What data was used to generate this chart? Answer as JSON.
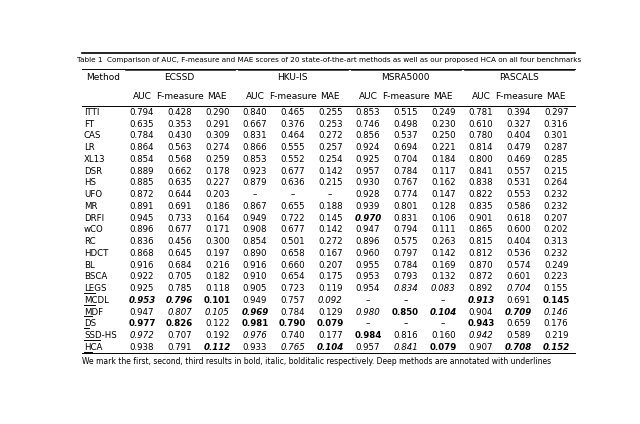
{
  "title": "Table 1  Comparison of AUC, F-measure and MAE scores of 20 state-of-the-art methods as well as our proposed HCA on all four benchmarks",
  "caption": "We mark the first, second, third results in bold, italic, bolditalic respectively. Deep methods are annotated with underlines",
  "datasets": [
    "ECSSD",
    "HKU-IS",
    "MSRA5000",
    "PASCALS"
  ],
  "sub_cols": [
    "AUC",
    "F-measure",
    "MAE"
  ],
  "methods": [
    "ITTI",
    "FT",
    "CAS",
    "LR",
    "XL13",
    "DSR",
    "HS",
    "UFO",
    "MR",
    "DRFI",
    "wCO",
    "RC",
    "HDCT",
    "BL",
    "BSCA",
    "LEGS",
    "MCDL",
    "MDF",
    "DS",
    "SSD-HS",
    "HCA"
  ],
  "deep_methods": [
    "LEGS",
    "MCDL",
    "MDF",
    "DS",
    "SSD-HS",
    "HCA"
  ],
  "data": {
    "ITTI": {
      "ECSSD": [
        0.794,
        0.428,
        0.29
      ],
      "HKU-IS": [
        0.84,
        0.465,
        0.255
      ],
      "MSRA5000": [
        0.853,
        0.515,
        0.249
      ],
      "PASCALS": [
        0.781,
        0.394,
        0.297
      ]
    },
    "FT": {
      "ECSSD": [
        0.635,
        0.353,
        0.291
      ],
      "HKU-IS": [
        0.667,
        0.376,
        0.253
      ],
      "MSRA5000": [
        0.746,
        0.498,
        0.23
      ],
      "PASCALS": [
        0.61,
        0.327,
        0.316
      ]
    },
    "CAS": {
      "ECSSD": [
        0.784,
        0.43,
        0.309
      ],
      "HKU-IS": [
        0.831,
        0.464,
        0.272
      ],
      "MSRA5000": [
        0.856,
        0.537,
        0.25
      ],
      "PASCALS": [
        0.78,
        0.404,
        0.301
      ]
    },
    "LR": {
      "ECSSD": [
        0.864,
        0.563,
        0.274
      ],
      "HKU-IS": [
        0.866,
        0.555,
        0.257
      ],
      "MSRA5000": [
        0.924,
        0.694,
        0.221
      ],
      "PASCALS": [
        0.814,
        0.479,
        0.287
      ]
    },
    "XL13": {
      "ECSSD": [
        0.854,
        0.568,
        0.259
      ],
      "HKU-IS": [
        0.853,
        0.552,
        0.254
      ],
      "MSRA5000": [
        0.925,
        0.704,
        0.184
      ],
      "PASCALS": [
        0.8,
        0.469,
        0.285
      ]
    },
    "DSR": {
      "ECSSD": [
        0.889,
        0.662,
        0.178
      ],
      "HKU-IS": [
        0.923,
        0.677,
        0.142
      ],
      "MSRA5000": [
        0.957,
        0.784,
        0.117
      ],
      "PASCALS": [
        0.841,
        0.557,
        0.215
      ]
    },
    "HS": {
      "ECSSD": [
        0.885,
        0.635,
        0.227
      ],
      "HKU-IS": [
        0.879,
        0.636,
        0.215
      ],
      "MSRA5000": [
        0.93,
        0.767,
        0.162
      ],
      "PASCALS": [
        0.838,
        0.531,
        0.264
      ]
    },
    "UFO": {
      "ECSSD": [
        0.872,
        0.644,
        0.203
      ],
      "HKU-IS": [
        null,
        null,
        null
      ],
      "MSRA5000": [
        0.928,
        0.774,
        0.147
      ],
      "PASCALS": [
        0.822,
        0.553,
        0.232
      ]
    },
    "MR": {
      "ECSSD": [
        0.891,
        0.691,
        0.186
      ],
      "HKU-IS": [
        0.867,
        0.655,
        0.188
      ],
      "MSRA5000": [
        0.939,
        0.801,
        0.128
      ],
      "PASCALS": [
        0.835,
        0.586,
        0.232
      ]
    },
    "DRFI": {
      "ECSSD": [
        0.945,
        0.733,
        0.164
      ],
      "HKU-IS": [
        0.949,
        0.722,
        0.145
      ],
      "MSRA5000": [
        0.97,
        0.831,
        0.106
      ],
      "PASCALS": [
        0.901,
        0.618,
        0.207
      ]
    },
    "wCO": {
      "ECSSD": [
        0.896,
        0.677,
        0.171
      ],
      "HKU-IS": [
        0.908,
        0.677,
        0.142
      ],
      "MSRA5000": [
        0.947,
        0.794,
        0.111
      ],
      "PASCALS": [
        0.865,
        0.6,
        0.202
      ]
    },
    "RC": {
      "ECSSD": [
        0.836,
        0.456,
        0.3
      ],
      "HKU-IS": [
        0.854,
        0.501,
        0.272
      ],
      "MSRA5000": [
        0.896,
        0.575,
        0.263
      ],
      "PASCALS": [
        0.815,
        0.404,
        0.313
      ]
    },
    "HDCT": {
      "ECSSD": [
        0.868,
        0.645,
        0.197
      ],
      "HKU-IS": [
        0.89,
        0.658,
        0.167
      ],
      "MSRA5000": [
        0.96,
        0.797,
        0.142
      ],
      "PASCALS": [
        0.812,
        0.536,
        0.232
      ]
    },
    "BL": {
      "ECSSD": [
        0.916,
        0.684,
        0.216
      ],
      "HKU-IS": [
        0.916,
        0.66,
        0.207
      ],
      "MSRA5000": [
        0.955,
        0.784,
        0.169
      ],
      "PASCALS": [
        0.87,
        0.574,
        0.249
      ]
    },
    "BSCA": {
      "ECSSD": [
        0.922,
        0.705,
        0.182
      ],
      "HKU-IS": [
        0.91,
        0.654,
        0.175
      ],
      "MSRA5000": [
        0.953,
        0.793,
        0.132
      ],
      "PASCALS": [
        0.872,
        0.601,
        0.223
      ]
    },
    "LEGS": {
      "ECSSD": [
        0.925,
        0.785,
        0.118
      ],
      "HKU-IS": [
        0.905,
        0.723,
        0.119
      ],
      "MSRA5000": [
        0.954,
        0.834,
        0.083
      ],
      "PASCALS": [
        0.892,
        0.704,
        0.155
      ]
    },
    "MCDL": {
      "ECSSD": [
        0.953,
        0.796,
        0.101
      ],
      "HKU-IS": [
        0.949,
        0.757,
        0.092
      ],
      "MSRA5000": [
        null,
        null,
        null
      ],
      "PASCALS": [
        0.913,
        0.691,
        0.145
      ]
    },
    "MDF": {
      "ECSSD": [
        0.947,
        0.807,
        0.105
      ],
      "HKU-IS": [
        0.969,
        0.784,
        0.129
      ],
      "MSRA5000": [
        0.98,
        0.85,
        0.104
      ],
      "PASCALS": [
        0.904,
        0.709,
        0.146
      ]
    },
    "DS": {
      "ECSSD": [
        0.977,
        0.826,
        0.122
      ],
      "HKU-IS": [
        0.981,
        0.79,
        0.079
      ],
      "MSRA5000": [
        null,
        null,
        null
      ],
      "PASCALS": [
        0.943,
        0.659,
        0.176
      ]
    },
    "SSD-HS": {
      "ECSSD": [
        0.972,
        0.707,
        0.192
      ],
      "HKU-IS": [
        0.976,
        0.74,
        0.177
      ],
      "MSRA5000": [
        0.984,
        0.816,
        0.16
      ],
      "PASCALS": [
        0.942,
        0.589,
        0.219
      ]
    },
    "HCA": {
      "ECSSD": [
        0.938,
        0.791,
        0.112
      ],
      "HKU-IS": [
        0.933,
        0.765,
        0.104
      ],
      "MSRA5000": [
        0.957,
        0.841,
        0.079
      ],
      "PASCALS": [
        0.907,
        0.708,
        0.152
      ]
    }
  },
  "fmt": {
    "DRFI": {
      "MSRA5000": [
        [
          "bold_italic",
          "normal",
          "normal"
        ]
      ]
    },
    "LEGS": {
      "ECSSD": [
        [
          "normal",
          "normal",
          "normal"
        ]
      ],
      "HKU-IS": [
        [
          "normal",
          "normal",
          "normal"
        ]
      ],
      "MSRA5000": [
        [
          "normal",
          "italic",
          "italic"
        ]
      ],
      "PASCALS": [
        [
          "normal",
          "italic",
          "normal"
        ]
      ]
    },
    "MCDL": {
      "ECSSD": [
        [
          "bold_italic",
          "bold_italic",
          "bold"
        ]
      ],
      "HKU-IS": [
        [
          "normal",
          "normal",
          "italic"
        ]
      ],
      "PASCALS": [
        [
          "bold_italic",
          "normal",
          "bold"
        ]
      ]
    },
    "MDF": {
      "ECSSD": [
        [
          "normal",
          "italic",
          "italic"
        ]
      ],
      "HKU-IS": [
        [
          "bold_italic",
          "normal",
          "normal"
        ]
      ],
      "MSRA5000": [
        [
          "italic",
          "bold",
          "bold_italic"
        ]
      ],
      "PASCALS": [
        [
          "normal",
          "bold_italic",
          "italic"
        ]
      ]
    },
    "DS": {
      "ECSSD": [
        [
          "bold",
          "bold",
          "normal"
        ]
      ],
      "HKU-IS": [
        [
          "bold",
          "bold",
          "bold"
        ]
      ],
      "PASCALS": [
        [
          "bold",
          "normal",
          "normal"
        ]
      ]
    },
    "SSD-HS": {
      "ECSSD": [
        [
          "italic",
          "normal",
          "normal"
        ]
      ],
      "HKU-IS": [
        [
          "italic",
          "normal",
          "normal"
        ]
      ],
      "MSRA5000": [
        [
          "bold",
          "normal",
          "normal"
        ]
      ],
      "PASCALS": [
        [
          "italic",
          "normal",
          "normal"
        ]
      ]
    },
    "HCA": {
      "ECSSD": [
        [
          "normal",
          "normal",
          "bold_italic"
        ]
      ],
      "HKU-IS": [
        [
          "normal",
          "italic",
          "bold_italic"
        ]
      ],
      "MSRA5000": [
        [
          "normal",
          "italic",
          "bold"
        ]
      ],
      "PASCALS": [
        [
          "normal",
          "bold_italic",
          "bold_italic"
        ]
      ]
    }
  }
}
